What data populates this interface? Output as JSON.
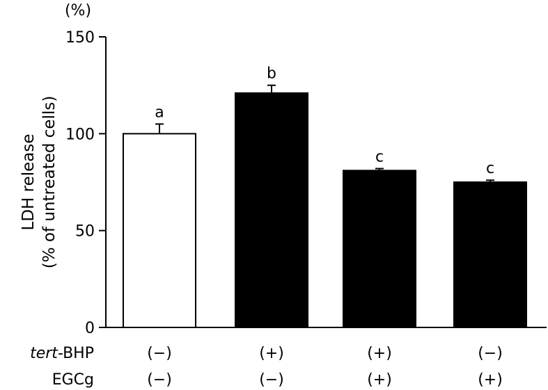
{
  "chart_data": {
    "type": "bar",
    "unit_label": "(%)",
    "ylabel_line1": "LDH release",
    "ylabel_line2": "(% of untreated cells)",
    "ylim": [
      0,
      150
    ],
    "yticks": [
      0,
      50,
      100,
      150
    ],
    "values": [
      100,
      121,
      81,
      75
    ],
    "errors": [
      5,
      4,
      1,
      1
    ],
    "bar_colors": [
      "#ffffff",
      "#000000",
      "#000000",
      "#000000"
    ],
    "significance": [
      "a",
      "b",
      "c",
      "c"
    ],
    "conditions": [
      {
        "name": "tert-BHP",
        "name_italic_part": "tert",
        "name_rest": "-BHP",
        "values": [
          "(−)",
          "(+)",
          "(+)",
          "(−)"
        ]
      },
      {
        "name": "EGCg",
        "name_italic_part": "",
        "name_rest": "EGCg",
        "values": [
          "(−)",
          "(−)",
          "(+)",
          "(+)"
        ]
      }
    ],
    "grid": false,
    "legend": "none"
  }
}
